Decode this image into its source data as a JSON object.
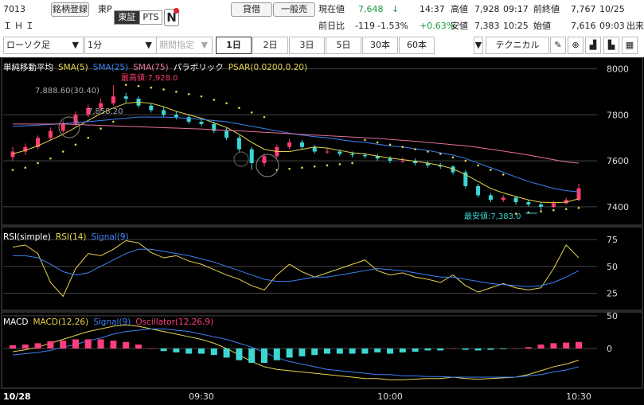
{
  "header": {
    "code": "7013",
    "name": "ＩＨＩ",
    "register_button": "銘柄登録",
    "market": "東P",
    "exchange_tabs": [
      "東証",
      "PTS"
    ],
    "news_icon": "N",
    "trade_buttons": [
      "貸借",
      "一般売"
    ],
    "quote_rows": [
      [
        "現在値",
        "7,648",
        "↓",
        "14:37",
        "高値",
        "7,928",
        "09:17",
        "前終値",
        "7,767",
        "10/25"
      ],
      [
        "前日比",
        "-119",
        "-1.53%",
        "+0.63%",
        "安値",
        "7,383",
        "10:25",
        "始値",
        "7,616",
        "09:03",
        "出来"
      ]
    ]
  },
  "toolbar": {
    "chart_kind": "ローソク足",
    "interval": "1分",
    "period": "期間指定",
    "ranges": [
      "1日",
      "2日",
      "3日",
      "5日",
      "30本",
      "60本"
    ],
    "technical": "テクニカル"
  },
  "chart_data": [
    {
      "type": "candlestick",
      "title": "単純移動平均",
      "overlay_title": "パラボリック",
      "date_label": "10/28",
      "categories": [
        null,
        null,
        null,
        null,
        null,
        null,
        null,
        null,
        null,
        null,
        null,
        null,
        null,
        null,
        null,
        "09:30",
        null,
        null,
        null,
        null,
        null,
        null,
        null,
        null,
        null,
        null,
        null,
        null,
        null,
        null,
        "10:00",
        null,
        null,
        null,
        null,
        null,
        null,
        null,
        null,
        null,
        null,
        null,
        null,
        null,
        null,
        "10:30"
      ],
      "up_color": "#ff3d6e",
      "down_color": "#3cd6d6",
      "candles": [
        [
          7616,
          7660,
          7600,
          7640
        ],
        [
          7640,
          7675,
          7625,
          7660
        ],
        [
          7660,
          7710,
          7650,
          7700
        ],
        [
          7700,
          7745,
          7690,
          7730
        ],
        [
          7730,
          7775,
          7720,
          7760
        ],
        [
          7760,
          7815,
          7750,
          7800
        ],
        [
          7800,
          7845,
          7790,
          7830
        ],
        [
          7830,
          7870,
          7815,
          7850
        ],
        [
          7850,
          7928,
          7840,
          7880
        ],
        [
          7880,
          7895,
          7850,
          7870
        ],
        [
          7870,
          7880,
          7830,
          7840
        ],
        [
          7840,
          7850,
          7810,
          7820
        ],
        [
          7820,
          7835,
          7790,
          7800
        ],
        [
          7800,
          7815,
          7780,
          7790
        ],
        [
          7790,
          7800,
          7760,
          7770
        ],
        [
          7770,
          7785,
          7750,
          7760
        ],
        [
          7760,
          7770,
          7720,
          7730
        ],
        [
          7730,
          7745,
          7690,
          7700
        ],
        [
          7700,
          7710,
          7640,
          7650
        ],
        [
          7650,
          7660,
          7560,
          7590
        ],
        [
          7590,
          7630,
          7575,
          7620
        ],
        [
          7620,
          7670,
          7610,
          7660
        ],
        [
          7660,
          7695,
          7650,
          7680
        ],
        [
          7680,
          7690,
          7650,
          7660
        ],
        [
          7660,
          7670,
          7630,
          7640
        ],
        [
          7640,
          7655,
          7630,
          7640
        ],
        [
          7640,
          7650,
          7620,
          7630
        ],
        [
          7630,
          7640,
          7615,
          7625
        ],
        [
          7625,
          7635,
          7610,
          7620
        ],
        [
          7620,
          7630,
          7600,
          7610
        ],
        [
          7610,
          7620,
          7590,
          7600
        ],
        [
          7600,
          7615,
          7590,
          7600
        ],
        [
          7600,
          7610,
          7580,
          7590
        ],
        [
          7590,
          7600,
          7570,
          7580
        ],
        [
          7580,
          7590,
          7565,
          7575
        ],
        [
          7575,
          7580,
          7540,
          7550
        ],
        [
          7550,
          7560,
          7480,
          7490
        ],
        [
          7490,
          7500,
          7440,
          7450
        ],
        [
          7450,
          7460,
          7420,
          7430
        ],
        [
          7430,
          7450,
          7420,
          7440
        ],
        [
          7440,
          7445,
          7410,
          7420
        ],
        [
          7420,
          7430,
          7400,
          7410
        ],
        [
          7410,
          7420,
          7383,
          7400
        ],
        [
          7400,
          7425,
          7395,
          7415
        ],
        [
          7415,
          7440,
          7410,
          7430
        ],
        [
          7430,
          7500,
          7425,
          7480
        ]
      ],
      "series": [
        {
          "name": "SMA(5)",
          "color": "#e8d44d",
          "values": [
            7630,
            7645,
            7665,
            7690,
            7715,
            7745,
            7775,
            7805,
            7830,
            7850,
            7855,
            7850,
            7835,
            7815,
            7800,
            7785,
            7765,
            7745,
            7715,
            7680,
            7650,
            7640,
            7640,
            7650,
            7660,
            7655,
            7645,
            7635,
            7630,
            7620,
            7612,
            7605,
            7598,
            7590,
            7580,
            7565,
            7540,
            7510,
            7480,
            7460,
            7445,
            7430,
            7420,
            7418,
            7420,
            7435
          ]
        },
        {
          "name": "SMA(25)",
          "color": "#3b82f6",
          "values": [
            7750,
            7752,
            7755,
            7758,
            7762,
            7766,
            7770,
            7775,
            7780,
            7785,
            7790,
            7790,
            7790,
            7788,
            7785,
            7780,
            7775,
            7770,
            7760,
            7750,
            7740,
            7730,
            7720,
            7712,
            7705,
            7700,
            7692,
            7685,
            7680,
            7672,
            7665,
            7660,
            7652,
            7645,
            7635,
            7625,
            7610,
            7590,
            7570,
            7550,
            7530,
            7510,
            7495,
            7480,
            7470,
            7465
          ]
        },
        {
          "name": "SMA(75)",
          "color": "#e8739b",
          "values": [
            7760,
            7760,
            7760,
            7760,
            7760,
            7758,
            7756,
            7754,
            7752,
            7750,
            7748,
            7746,
            7744,
            7742,
            7740,
            7738,
            7735,
            7732,
            7730,
            7727,
            7724,
            7721,
            7718,
            7715,
            7712,
            7709,
            7706,
            7703,
            7700,
            7697,
            7693,
            7689,
            7685,
            7680,
            7675,
            7670,
            7665,
            7658,
            7650,
            7642,
            7634,
            7625,
            7615,
            7605,
            7595,
            7590
          ]
        },
        {
          "name": "PSAR(0.0200,0.20)",
          "color": "#e8d44d",
          "style": "dots",
          "values": [
            7560,
            7570,
            7590,
            7610,
            7640,
            7670,
            7700,
            7740,
            7770,
            7930,
            7925,
            7918,
            7910,
            7900,
            7890,
            7880,
            7865,
            7850,
            7830,
            7810,
            7790,
            7560,
            7565,
            7570,
            7575,
            7580,
            7585,
            7590,
            7690,
            7680,
            7670,
            7660,
            7650,
            7640,
            7630,
            7615,
            7600,
            7580,
            7560,
            7540,
            7370,
            7375,
            7380,
            7385,
            7390,
            7395
          ]
        }
      ],
      "ylim": [
        7320,
        8050
      ],
      "yticks": [
        7400,
        7600,
        7800,
        8000
      ],
      "annotations": [
        {
          "text": "最高値:7,928.0",
          "color": "#ff3d6e"
        },
        {
          "text": "最安値:7,383.0",
          "color": "#3cd6d6"
        },
        {
          "text": "7,888.60(30.40)",
          "color": "#aaaaaa"
        },
        {
          "text": "7,858.20",
          "color": "#aaaaaa"
        }
      ]
    },
    {
      "type": "line",
      "title": "RSI(simple)",
      "series": [
        {
          "name": "RSI(14)",
          "color": "#e8d44d",
          "values": [
            68,
            70,
            62,
            35,
            22,
            48,
            62,
            60,
            66,
            74,
            72,
            63,
            58,
            60,
            55,
            52,
            47,
            42,
            38,
            32,
            28,
            42,
            52,
            45,
            40,
            44,
            48,
            52,
            56,
            46,
            42,
            44,
            40,
            38,
            35,
            42,
            32,
            26,
            30,
            34,
            30,
            28,
            30,
            48,
            70,
            58
          ]
        },
        {
          "name": "Signal(9)",
          "color": "#3b82f6",
          "values": [
            60,
            60,
            58,
            52,
            45,
            42,
            44,
            50,
            56,
            62,
            66,
            66,
            64,
            62,
            60,
            57,
            54,
            50,
            46,
            42,
            38,
            36,
            36,
            38,
            40,
            40,
            42,
            44,
            46,
            48,
            47,
            46,
            44,
            42,
            40,
            40,
            38,
            36,
            34,
            33,
            32,
            31,
            32,
            35,
            40,
            46
          ]
        }
      ],
      "ylim": [
        9,
        87
      ],
      "yticks": [
        25,
        50,
        75
      ]
    },
    {
      "type": "macd",
      "title": "MACD",
      "series": [
        {
          "name": "MACD(12,26)",
          "color": "#e8d44d",
          "values": [
            -5,
            -2,
            2,
            8,
            14,
            20,
            26,
            30,
            34,
            36,
            34,
            30,
            26,
            22,
            18,
            14,
            8,
            0,
            -10,
            -20,
            -28,
            -32,
            -34,
            -36,
            -38,
            -40,
            -42,
            -44,
            -46,
            -46,
            -48,
            -48,
            -47,
            -46,
            -46,
            -44,
            -46,
            -47,
            -46,
            -45,
            -44,
            -40,
            -34,
            -28,
            -24,
            -18
          ]
        },
        {
          "name": "Signal(9)",
          "color": "#3b82f6",
          "values": [
            -10,
            -8,
            -6,
            -3,
            2,
            6,
            12,
            16,
            22,
            26,
            28,
            30,
            30,
            28,
            26,
            22,
            18,
            14,
            8,
            2,
            -6,
            -14,
            -20,
            -24,
            -28,
            -32,
            -34,
            -36,
            -38,
            -40,
            -40,
            -42,
            -42,
            -43,
            -43,
            -44,
            -44,
            -44,
            -44,
            -44,
            -44,
            -42,
            -40,
            -36,
            -33,
            -28
          ]
        },
        {
          "name": "Oscillator(12,26,9)",
          "color": "#ff3d7f",
          "negative_color": "#3dd6d0",
          "style": "bar",
          "values": [
            5,
            6,
            8,
            11,
            12,
            14,
            14,
            14,
            12,
            10,
            6,
            0,
            -4,
            -6,
            -8,
            -8,
            -10,
            -14,
            -18,
            -22,
            -22,
            -18,
            -14,
            -12,
            -10,
            -8,
            -8,
            -8,
            -8,
            -6,
            -8,
            -6,
            -5,
            -3,
            -3,
            0,
            -2,
            -3,
            -2,
            -1,
            0,
            2,
            6,
            8,
            9,
            10
          ]
        }
      ],
      "ylim": [
        -61,
        56
      ],
      "yticks": [
        0,
        50
      ]
    }
  ]
}
